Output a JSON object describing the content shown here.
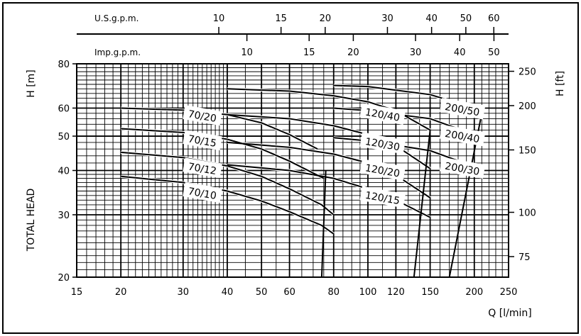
{
  "chart_data": {
    "type": "line",
    "x_scale": "log",
    "y_scale": "log",
    "grid": true,
    "xlabel": "Q [l/min]",
    "xlim": [
      15,
      250
    ],
    "x_ticks": [
      15,
      20,
      30,
      40,
      50,
      60,
      80,
      100,
      120,
      150,
      200,
      250
    ],
    "ylabel_left_top": "H [m]",
    "ylabel_left": "TOTAL HEAD",
    "ylim": [
      20,
      80
    ],
    "y_ticks": [
      20,
      30,
      40,
      50,
      60,
      80
    ],
    "ylabel_right": "H [ft]",
    "y_right_ticks": [
      75,
      100,
      150,
      200,
      250
    ],
    "top_axes": [
      {
        "label": "U.S.g.p.m.",
        "ticks": [
          10,
          15,
          20,
          30,
          40,
          50,
          60
        ]
      },
      {
        "label": "Imp.g.p.m.",
        "ticks": [
          10,
          15,
          20,
          30,
          40,
          50
        ]
      }
    ],
    "series": [
      {
        "name": "70/20",
        "x": [
          20,
          30,
          40,
          50,
          60,
          72
        ],
        "y": [
          60,
          59.2,
          57.5,
          54.5,
          50.5,
          46
        ]
      },
      {
        "name": "70/15",
        "x": [
          20,
          30,
          40,
          50,
          60,
          75
        ],
        "y": [
          52.5,
          51.2,
          49,
          46,
          42.5,
          38
        ]
      },
      {
        "name": "70/12",
        "x": [
          20,
          30,
          40,
          50,
          60,
          74,
          80
        ],
        "y": [
          45,
          43.5,
          41.2,
          38.5,
          35.5,
          32,
          30
        ]
      },
      {
        "name": "70/10",
        "x": [
          20,
          30,
          40,
          50,
          60,
          74,
          80
        ],
        "y": [
          38.5,
          37,
          35,
          32.8,
          30.6,
          28,
          26.5
        ]
      },
      {
        "name": "120/40",
        "x": [
          40,
          60,
          80,
          100,
          120,
          150
        ],
        "y": [
          68,
          67,
          65,
          62.5,
          59,
          52
        ]
      },
      {
        "name": "120/30",
        "x": [
          40,
          60,
          80,
          100,
          120,
          150
        ],
        "y": [
          57.5,
          56,
          53.5,
          50.5,
          47,
          40.5
        ]
      },
      {
        "name": "120/20",
        "x": [
          40,
          60,
          80,
          100,
          120,
          150
        ],
        "y": [
          48,
          46.5,
          44.5,
          42,
          38.8,
          33.5
        ]
      },
      {
        "name": "120/15",
        "x": [
          40,
          60,
          80,
          100,
          120,
          150
        ],
        "y": [
          41.5,
          40,
          38,
          35.5,
          33,
          29.5
        ]
      },
      {
        "name": "200/50",
        "x": [
          80,
          100,
          150,
          200,
          210
        ],
        "y": [
          69.5,
          69,
          65.5,
          60,
          58
        ]
      },
      {
        "name": "200/40",
        "x": [
          80,
          100,
          150,
          200,
          210
        ],
        "y": [
          60,
          59,
          56,
          50.5,
          49
        ]
      },
      {
        "name": "200/30",
        "x": [
          80,
          100,
          150,
          200,
          210
        ],
        "y": [
          49.5,
          48.5,
          45.5,
          41,
          39.5
        ]
      }
    ],
    "limit_lines": [
      {
        "x": [
          74,
          76
        ],
        "y": [
          20,
          40
        ]
      },
      {
        "x": [
          135,
          150
        ],
        "y": [
          20,
          52
        ]
      },
      {
        "x": [
          170,
          210
        ],
        "y": [
          20,
          58
        ]
      }
    ],
    "labels": [
      {
        "text": "70/20",
        "x": 34,
        "y": 57
      },
      {
        "text": "70/15",
        "x": 34,
        "y": 48.5
      },
      {
        "text": "70/12",
        "x": 34,
        "y": 40.5
      },
      {
        "text": "70/10",
        "x": 34,
        "y": 34.5
      },
      {
        "text": "120/40",
        "x": 110,
        "y": 57.5
      },
      {
        "text": "120/30",
        "x": 110,
        "y": 47.5
      },
      {
        "text": "120/20",
        "x": 110,
        "y": 40
      },
      {
        "text": "120/15",
        "x": 110,
        "y": 33.5
      },
      {
        "text": "200/50",
        "x": 185,
        "y": 59.5
      },
      {
        "text": "200/40",
        "x": 185,
        "y": 50
      },
      {
        "text": "200/30",
        "x": 185,
        "y": 40.5
      }
    ]
  }
}
